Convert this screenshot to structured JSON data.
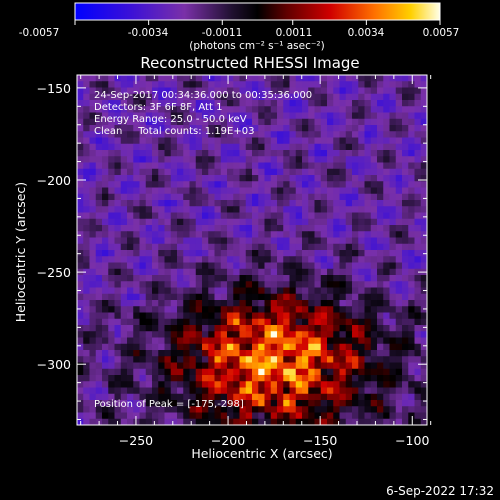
{
  "colorbar": {
    "ticks": [
      "-0.0057",
      "-0.0034",
      "-0.0011",
      "0.0011",
      "0.0034",
      "0.0057"
    ],
    "units_label": "(photons cm⁻² s⁻¹ asec⁻²)",
    "range": [
      -0.0057,
      0.0057
    ],
    "colors": [
      "#0000ff",
      "#4c00c0",
      "#8a2b90",
      "#000000",
      "#8a0000",
      "#e00000",
      "#ff7a00",
      "#ffd000",
      "#ffffe8"
    ]
  },
  "chart_data": {
    "type": "heatmap",
    "title": "Reconstructed RHESSI Image",
    "xlabel": "Heliocentric X (arcsec)",
    "ylabel": "Heliocentric Y (arcsec)",
    "xlim": [
      -282,
      -92
    ],
    "ylim": [
      -333,
      -143
    ],
    "xticks": [
      -250,
      -200,
      -150,
      -100
    ],
    "yticks": [
      -150,
      -200,
      -250,
      -300
    ],
    "xtick_labels": [
      "−250",
      "−200",
      "−150",
      "−100"
    ],
    "ytick_labels": [
      "−150",
      "−200",
      "−250",
      "−300"
    ],
    "peak": {
      "x": -175,
      "y": -298
    },
    "annotations": [
      "24-Sep-2017 00:34:36.000 to 00:35:36.000",
      "Detectors: 3F 6F 8F, Att 1",
      "Energy Range: 25.0 - 50.0 keV",
      "Clean     Total counts: 1.19E+03"
    ],
    "peak_label": "Position of Peak = [-175,-298]"
  },
  "footer_date": "6-Sep-2022 17:32"
}
